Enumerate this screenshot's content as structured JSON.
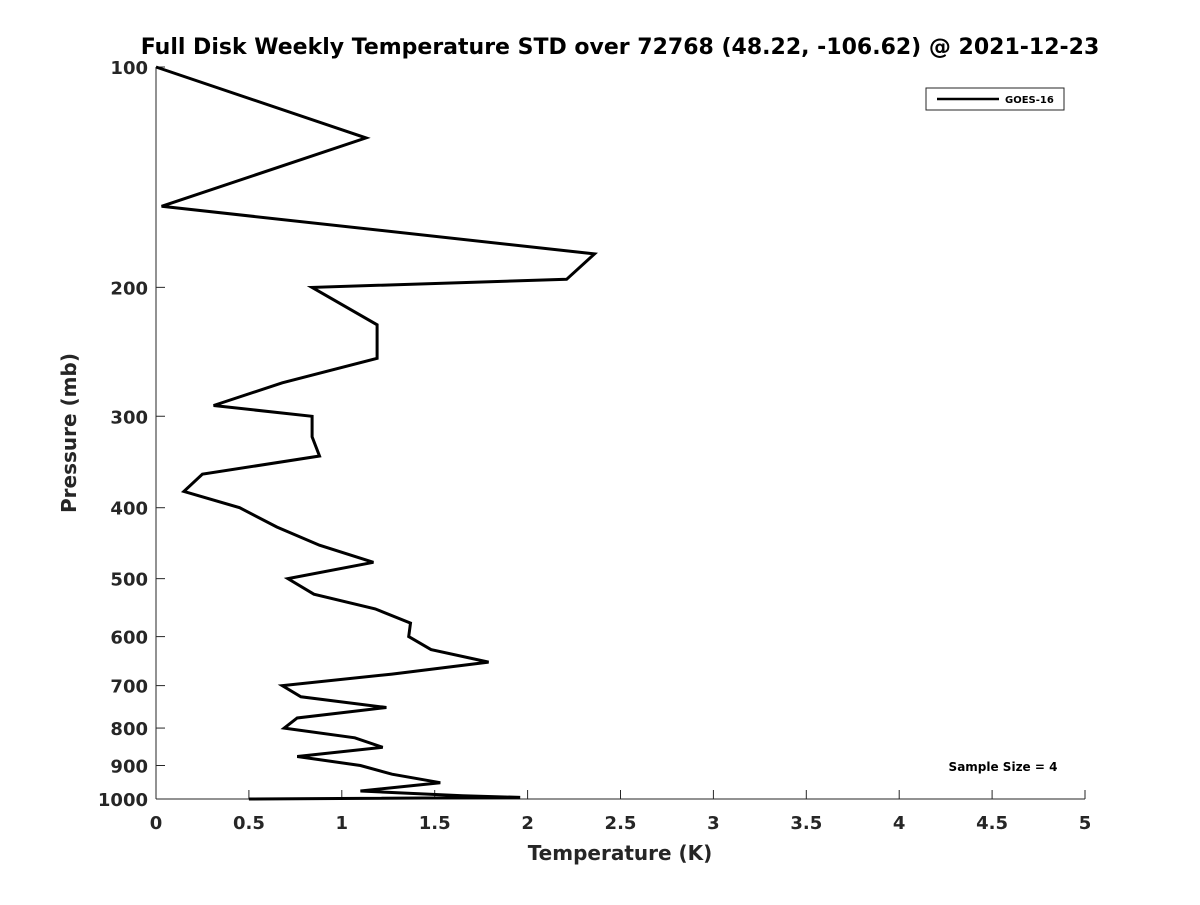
{
  "chart_data": {
    "type": "line",
    "title": "Full Disk Weekly Temperature STD over 72768 (48.22, -106.62) @ 2021-12-23",
    "xlabel": "Temperature (K)",
    "ylabel": "Pressure (mb)",
    "xlim": [
      0,
      5
    ],
    "ylim": [
      100,
      1000
    ],
    "y_scale": "log",
    "y_reversed": true,
    "xticks": [
      0,
      0.5,
      1,
      1.5,
      2,
      2.5,
      3,
      3.5,
      4,
      4.5,
      5
    ],
    "xtick_labels": [
      "0",
      "0.5",
      "1",
      "1.5",
      "2",
      "2.5",
      "3",
      "3.5",
      "4",
      "4.5",
      "5"
    ],
    "yticks": [
      100,
      200,
      300,
      400,
      500,
      600,
      700,
      800,
      900,
      1000
    ],
    "ytick_labels": [
      "100",
      "200",
      "300",
      "400",
      "500",
      "600",
      "700",
      "800",
      "900",
      "1000"
    ],
    "grid": false,
    "legend_position": "top-right",
    "annotation": "Sample Size = 4",
    "series": [
      {
        "name": "GOES-16",
        "color": "#000000",
        "points": [
          [
            0.0,
            100
          ],
          [
            1.13,
            125
          ],
          [
            0.03,
            155
          ],
          [
            2.36,
            180
          ],
          [
            2.21,
            195
          ],
          [
            0.84,
            200
          ],
          [
            1.19,
            225
          ],
          [
            1.19,
            250
          ],
          [
            0.68,
            270
          ],
          [
            0.31,
            290
          ],
          [
            0.84,
            300
          ],
          [
            0.84,
            320
          ],
          [
            0.88,
            340
          ],
          [
            0.25,
            360
          ],
          [
            0.15,
            380
          ],
          [
            0.45,
            400
          ],
          [
            0.65,
            425
          ],
          [
            0.88,
            450
          ],
          [
            1.17,
            475
          ],
          [
            0.71,
            500
          ],
          [
            0.85,
            525
          ],
          [
            1.18,
            550
          ],
          [
            1.37,
            575
          ],
          [
            1.36,
            600
          ],
          [
            1.48,
            625
          ],
          [
            1.79,
            650
          ],
          [
            1.27,
            675
          ],
          [
            0.68,
            700
          ],
          [
            0.78,
            725
          ],
          [
            1.24,
            750
          ],
          [
            0.76,
            775
          ],
          [
            0.69,
            800
          ],
          [
            1.07,
            825
          ],
          [
            1.22,
            850
          ],
          [
            0.76,
            875
          ],
          [
            1.1,
            900
          ],
          [
            1.27,
            925
          ],
          [
            1.53,
            950
          ],
          [
            1.1,
            975
          ],
          [
            1.65,
            990
          ],
          [
            1.96,
            995
          ],
          [
            0.5,
            1000
          ]
        ]
      }
    ]
  }
}
